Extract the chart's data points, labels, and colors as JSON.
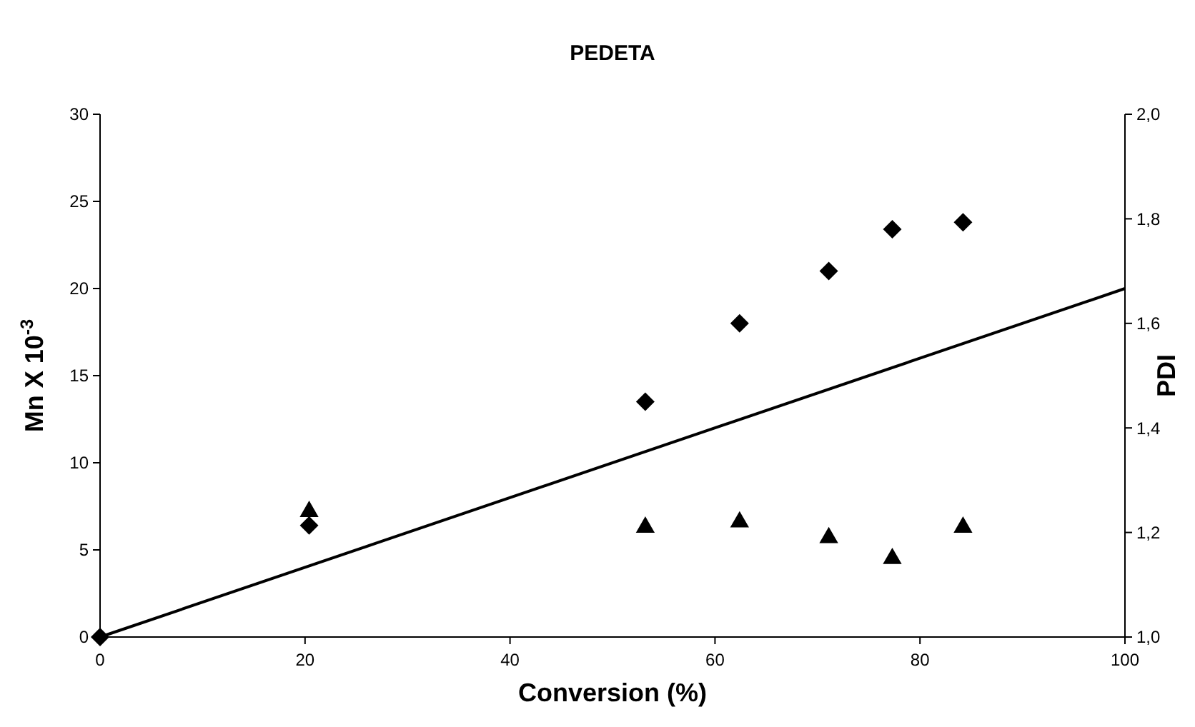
{
  "chart_data": {
    "type": "scatter",
    "title": "PEDETA",
    "xlabel": "Conversion (%)",
    "ylabel": "Mn X 10$^{-3}$",
    "y2label": "PDI",
    "xlim": [
      0,
      100
    ],
    "xticks": [
      0,
      20,
      40,
      60,
      80,
      100
    ],
    "ylim": [
      0,
      30
    ],
    "yticks": [
      0,
      5,
      10,
      15,
      20,
      25,
      30
    ],
    "y2lim": [
      1,
      2
    ],
    "y2ticks": [
      {
        "value": 1,
        "label": "1,0"
      },
      {
        "value": 1.2,
        "label": "1,2"
      },
      {
        "value": 1.4,
        "label": "1,4"
      },
      {
        "value": 1.6,
        "label": "1,6"
      },
      {
        "value": 1.8,
        "label": "1,8"
      },
      {
        "value": 2,
        "label": "2,0"
      }
    ],
    "grid": false,
    "series": [
      {
        "type": "line",
        "color": "#000000",
        "marker": "none",
        "line_style": "solid",
        "x": [
          0,
          100
        ],
        "values": [
          0,
          20
        ]
      },
      {
        "color": "#000000",
        "marker": "diamond",
        "x": [
          0,
          20.4,
          53.2,
          62.4,
          71.1,
          77.3,
          84.2
        ],
        "values": [
          0,
          6.4,
          13.5,
          18.0,
          21.0,
          23.4,
          23.8
        ]
      },
      {
        "color": "#000000",
        "marker": "triangle",
        "axis": "y2",
        "x": [
          20.4,
          53.2,
          62.4,
          71.1,
          77.3,
          84.2
        ],
        "values": [
          1.24,
          1.21,
          1.22,
          1.19,
          1.15,
          1.21
        ]
      }
    ]
  }
}
